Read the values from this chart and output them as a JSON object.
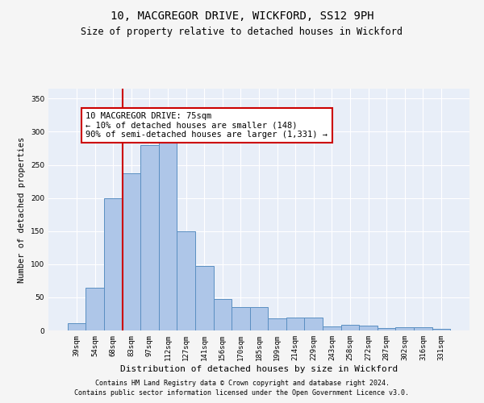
{
  "title": "10, MACGREGOR DRIVE, WICKFORD, SS12 9PH",
  "subtitle": "Size of property relative to detached houses in Wickford",
  "xlabel": "Distribution of detached houses by size in Wickford",
  "ylabel": "Number of detached properties",
  "categories": [
    "39sqm",
    "54sqm",
    "68sqm",
    "83sqm",
    "97sqm",
    "112sqm",
    "127sqm",
    "141sqm",
    "156sqm",
    "170sqm",
    "185sqm",
    "199sqm",
    "214sqm",
    "229sqm",
    "243sqm",
    "258sqm",
    "272sqm",
    "287sqm",
    "302sqm",
    "316sqm",
    "331sqm"
  ],
  "values": [
    11,
    64,
    200,
    237,
    280,
    290,
    150,
    97,
    47,
    35,
    35,
    18,
    19,
    19,
    6,
    9,
    7,
    4,
    5,
    5,
    3
  ],
  "bar_color": "#aec6e8",
  "bar_edge_color": "#5a8fc2",
  "vline_position": 2.5,
  "vline_color": "#cc0000",
  "annotation_text": "10 MACGREGOR DRIVE: 75sqm\n← 10% of detached houses are smaller (148)\n90% of semi-detached houses are larger (1,331) →",
  "annotation_box_color": "#ffffff",
  "annotation_box_edge": "#cc0000",
  "ylim": [
    0,
    365
  ],
  "yticks": [
    0,
    50,
    100,
    150,
    200,
    250,
    300,
    350
  ],
  "background_color": "#e8eef8",
  "grid_color": "#ffffff",
  "title_fontsize": 10,
  "subtitle_fontsize": 8.5,
  "ylabel_fontsize": 7.5,
  "xlabel_fontsize": 8,
  "tick_fontsize": 6.5,
  "annotation_fontsize": 7.5,
  "footer_line1": "Contains HM Land Registry data © Crown copyright and database right 2024.",
  "footer_line2": "Contains public sector information licensed under the Open Government Licence v3.0.",
  "footer_fontsize": 6
}
